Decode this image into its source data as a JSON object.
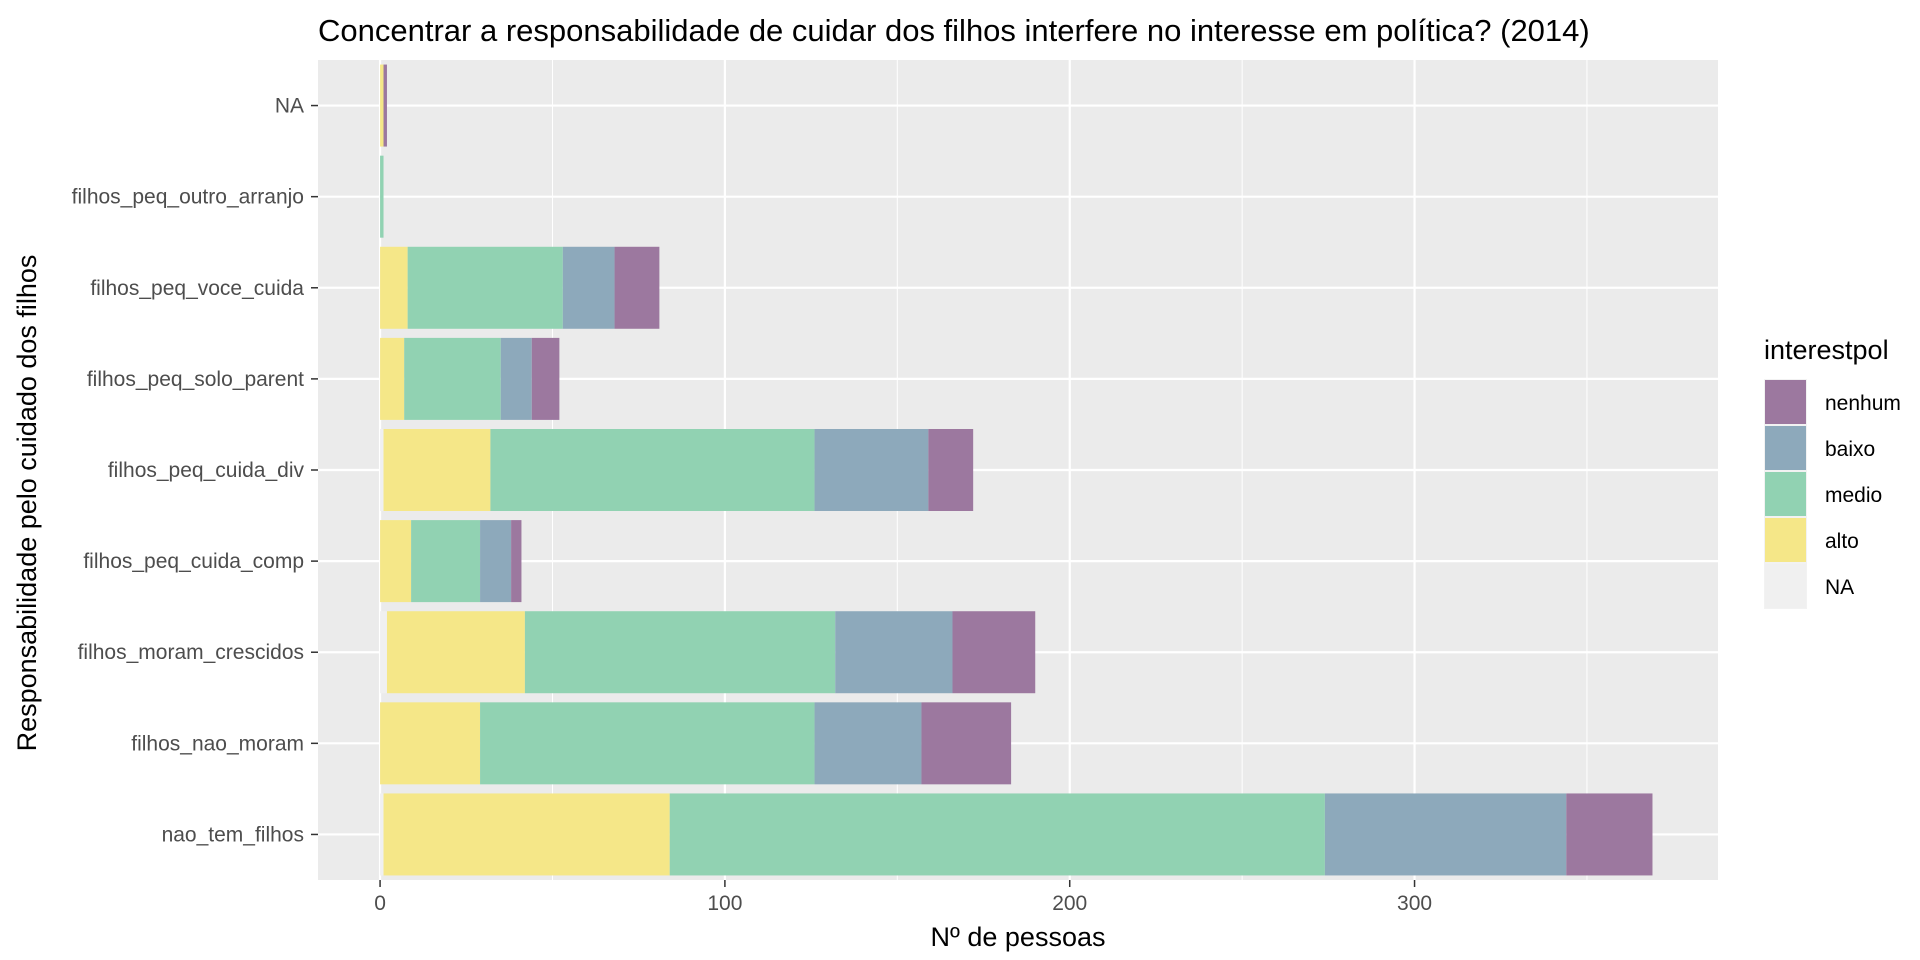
{
  "chart_data": {
    "type": "bar",
    "orientation": "horizontal",
    "stacked": true,
    "title": "Concentrar a responsabilidade de cuidar dos filhos interfere no interesse em política? (2014)",
    "xlabel": "Nº de pessoas",
    "ylabel": "Responsabilidade pelo cuidado dos filhos",
    "xlim": [
      -18,
      388
    ],
    "xticks": [
      0,
      100,
      200,
      300
    ],
    "grid": true,
    "legend": {
      "title": "interestpol",
      "position": "right"
    },
    "categories": [
      "NA",
      "filhos_peq_outro_arranjo",
      "filhos_peq_voce_cuida",
      "filhos_peq_solo_parent",
      "filhos_peq_cuida_div",
      "filhos_peq_cuida_comp",
      "filhos_moram_crescidos",
      "filhos_nao_moram",
      "nao_tem_filhos"
    ],
    "series": [
      {
        "name": "NA",
        "color": "#f0f0f0",
        "values": [
          0,
          0,
          0,
          0,
          1,
          0,
          2,
          0,
          1
        ]
      },
      {
        "name": "alto",
        "color": "#f5e788",
        "values": [
          1,
          0,
          8,
          7,
          31,
          9,
          40,
          29,
          83
        ]
      },
      {
        "name": "medio",
        "color": "#91d2b2",
        "values": [
          0,
          1,
          45,
          28,
          94,
          20,
          90,
          97,
          190
        ]
      },
      {
        "name": "baixo",
        "color": "#8da9bb",
        "values": [
          0,
          0,
          15,
          9,
          33,
          9,
          34,
          31,
          70
        ]
      },
      {
        "name": "nenhum",
        "color": "#9c789f",
        "values": [
          1,
          0,
          13,
          8,
          13,
          3,
          24,
          26,
          25
        ]
      }
    ]
  }
}
